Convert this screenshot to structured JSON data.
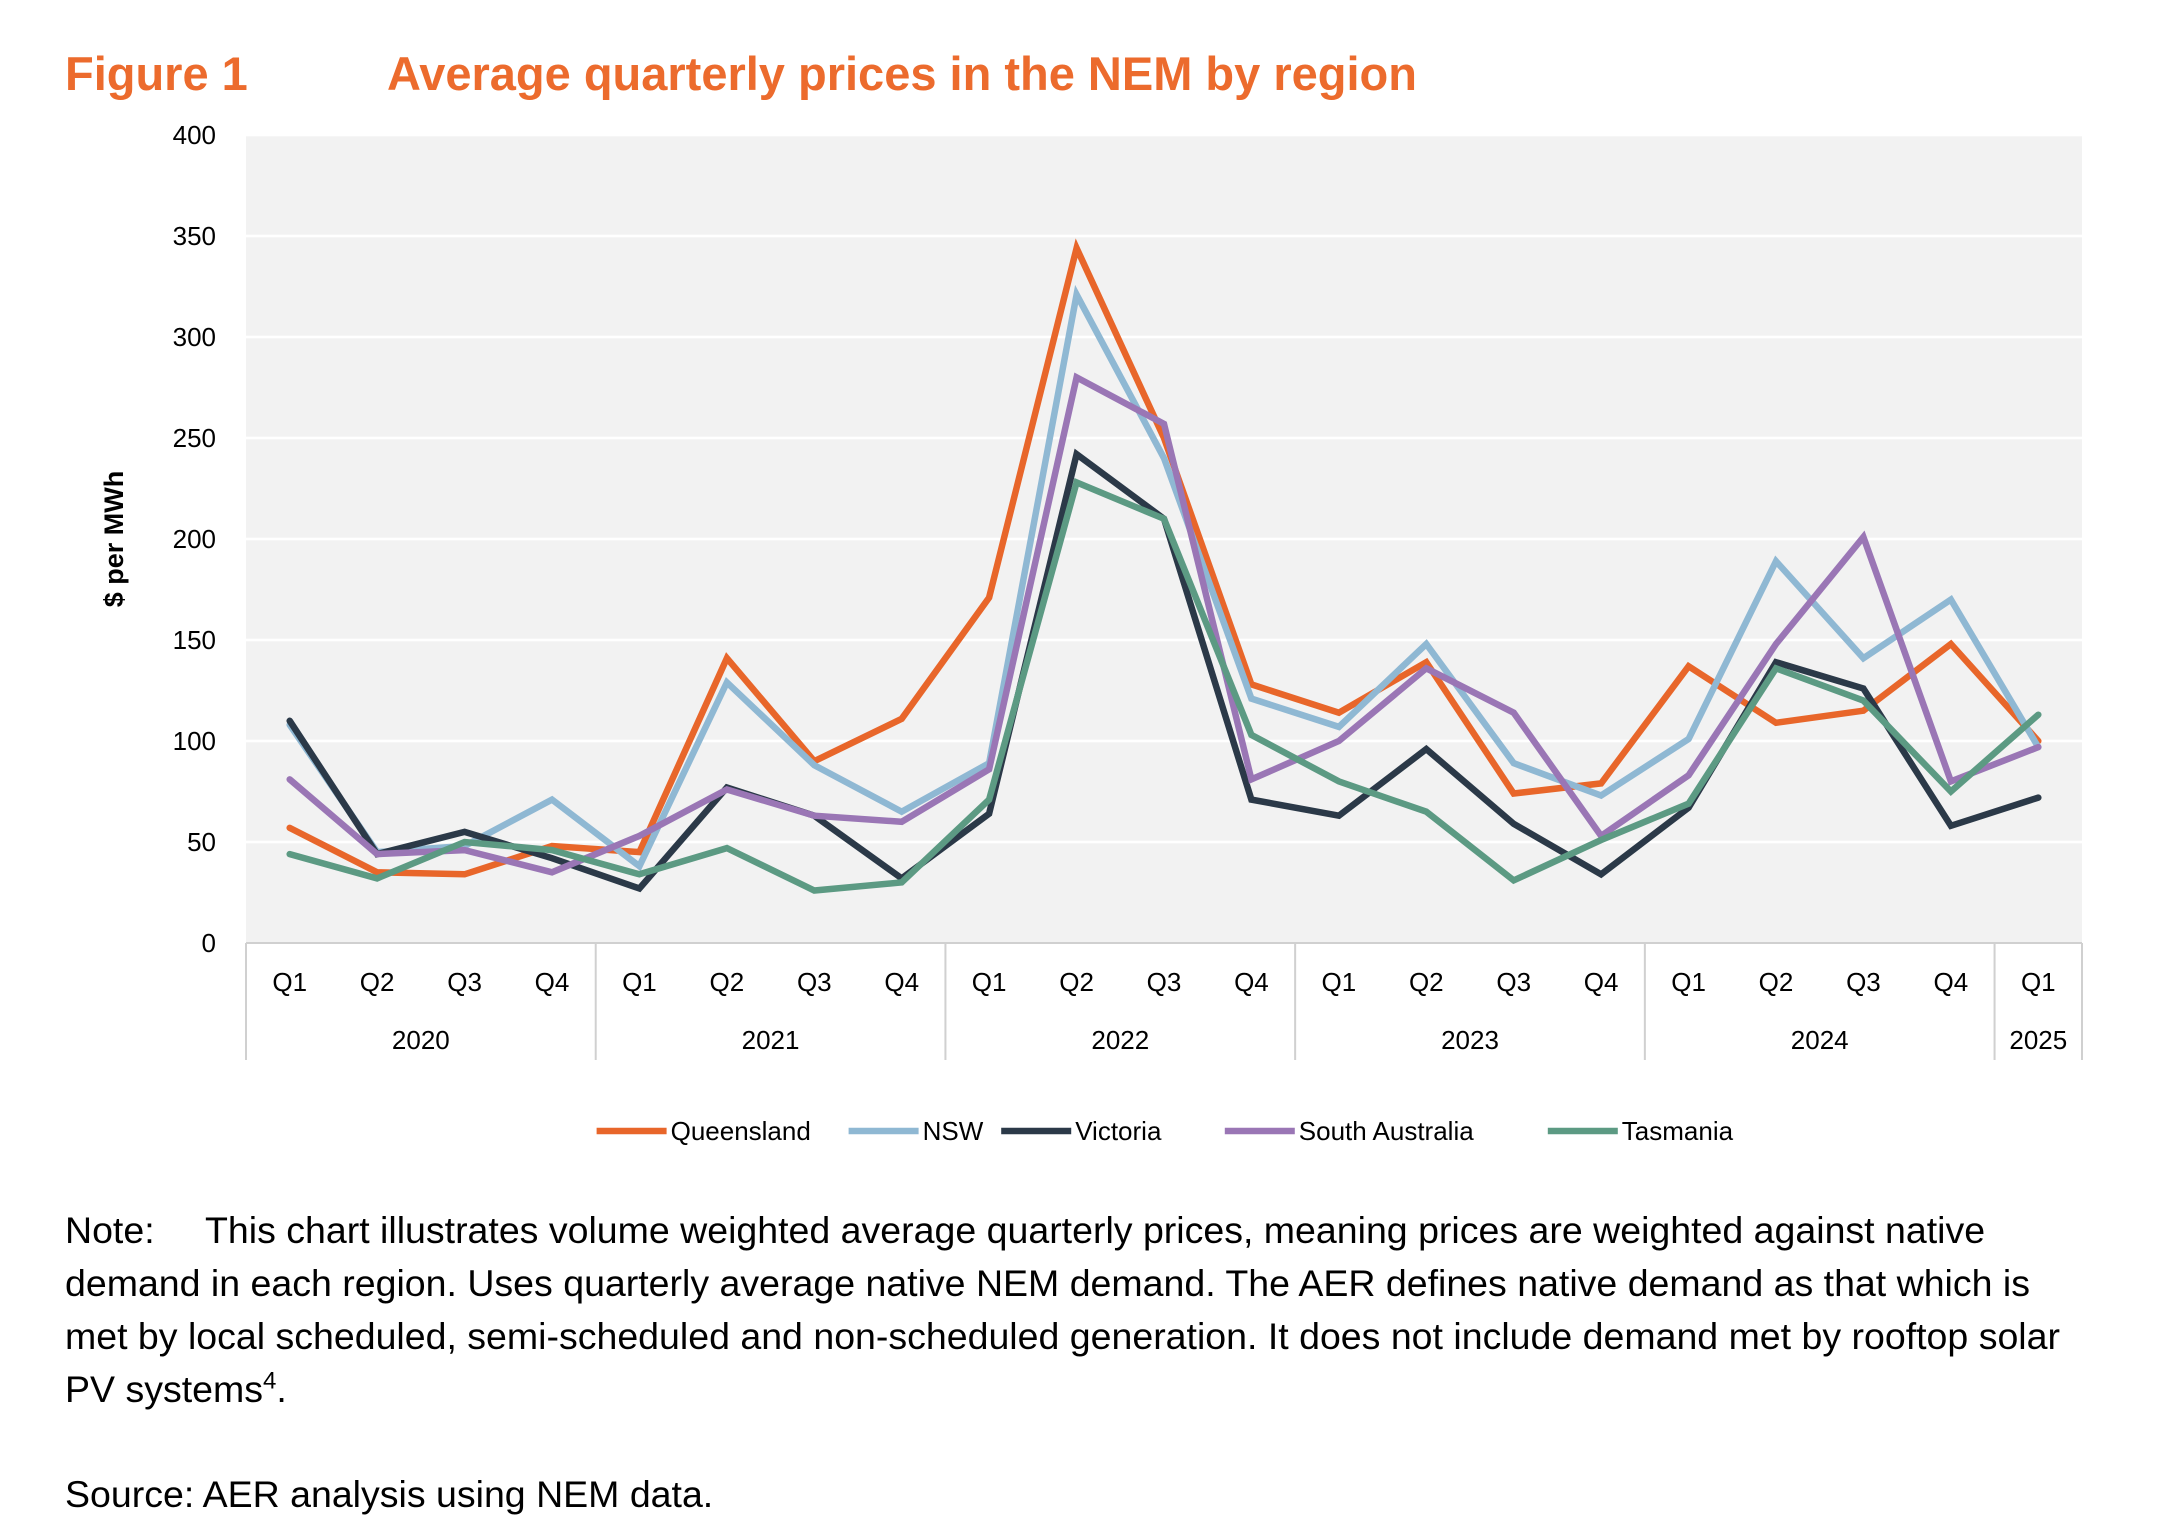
{
  "figure": {
    "label": "Figure 1",
    "title": "Average quarterly prices in the NEM by region"
  },
  "chart_data": {
    "type": "line",
    "title": "Average quarterly prices in the NEM by region",
    "ylabel": "$ per MWh",
    "xlabel": "",
    "ylim": [
      0,
      400
    ],
    "yticks": [
      0,
      50,
      100,
      150,
      200,
      250,
      300,
      350,
      400
    ],
    "grid": true,
    "legend_position": "bottom",
    "categories": [
      "Q1",
      "Q2",
      "Q3",
      "Q4",
      "Q1",
      "Q2",
      "Q3",
      "Q4",
      "Q1",
      "Q2",
      "Q3",
      "Q4",
      "Q1",
      "Q2",
      "Q3",
      "Q4",
      "Q1",
      "Q2",
      "Q3",
      "Q4",
      "Q1"
    ],
    "year_groups": [
      {
        "label": "2020",
        "span": 4
      },
      {
        "label": "2021",
        "span": 4
      },
      {
        "label": "2022",
        "span": 4
      },
      {
        "label": "2023",
        "span": 4
      },
      {
        "label": "2024",
        "span": 4
      },
      {
        "label": "2025",
        "span": 1
      }
    ],
    "series": [
      {
        "name": "Queensland",
        "color": "#e8662a",
        "values": [
          57,
          35,
          34,
          48,
          45,
          141,
          90,
          111,
          171,
          344,
          250,
          128,
          114,
          139,
          74,
          79,
          137,
          109,
          115,
          148,
          100
        ]
      },
      {
        "name": "NSW",
        "color": "#8fb8d3",
        "values": [
          108,
          45,
          48,
          71,
          38,
          129,
          88,
          65,
          89,
          321,
          240,
          121,
          107,
          148,
          89,
          73,
          101,
          189,
          141,
          170,
          97
        ]
      },
      {
        "name": "Victoria",
        "color": "#2b3948",
        "values": [
          110,
          44,
          55,
          42,
          27,
          77,
          63,
          32,
          64,
          242,
          210,
          71,
          63,
          96,
          59,
          34,
          67,
          139,
          126,
          58,
          72
        ]
      },
      {
        "name": "South Australia",
        "color": "#9a76b5",
        "values": [
          81,
          44,
          46,
          35,
          53,
          76,
          63,
          60,
          86,
          280,
          257,
          81,
          100,
          136,
          114,
          53,
          83,
          148,
          201,
          80,
          97
        ]
      },
      {
        "name": "Tasmania",
        "color": "#5c9a83",
        "values": [
          44,
          32,
          50,
          46,
          34,
          47,
          26,
          30,
          71,
          228,
          210,
          103,
          80,
          65,
          31,
          51,
          69,
          136,
          120,
          75,
          113
        ]
      }
    ]
  },
  "note": {
    "label": "Note:",
    "text": "This chart illustrates volume weighted average quarterly prices, meaning prices are weighted against native demand in each region. Uses quarterly average native NEM demand. The AER defines native demand as that which is met by local scheduled, semi-scheduled and non-scheduled generation. It does not include demand met by rooftop solar PV systems",
    "footnote_ref": "4",
    "end": "."
  },
  "source": "Source: AER analysis using NEM data."
}
